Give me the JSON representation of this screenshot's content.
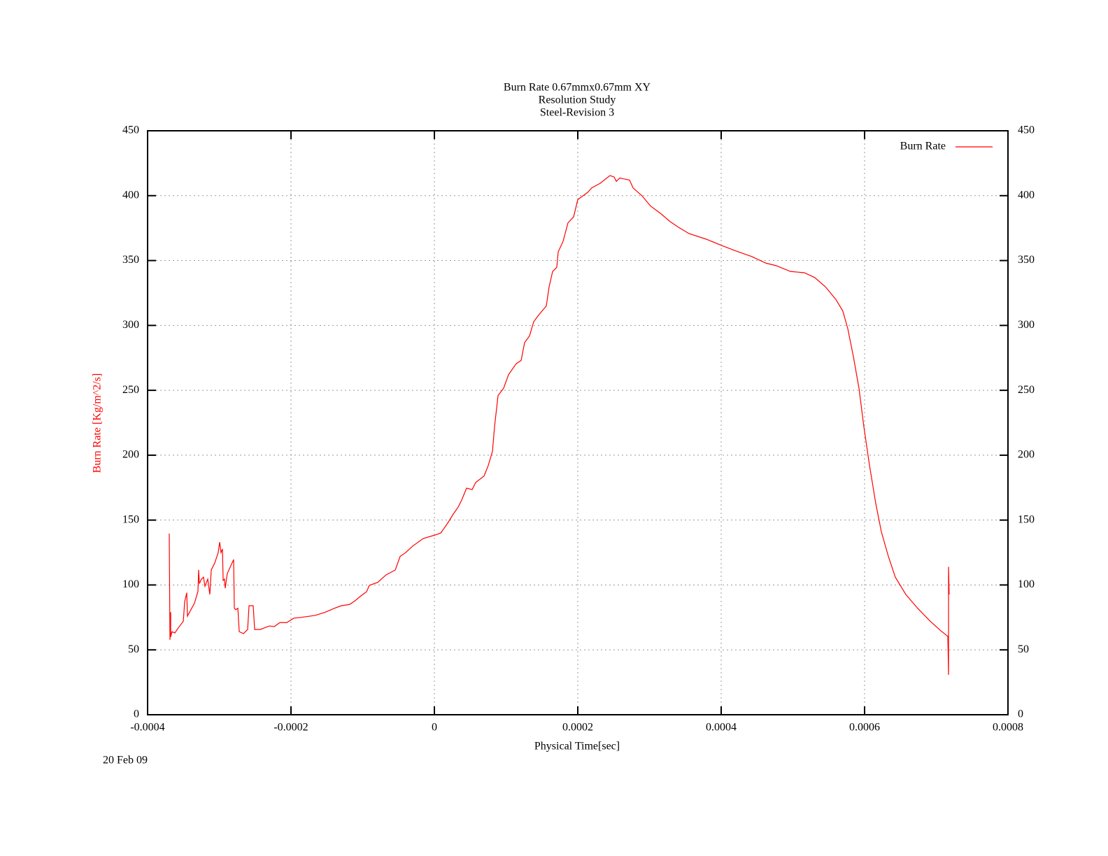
{
  "chart_data": {
    "type": "line",
    "title": [
      "Burn Rate 0.67mmx0.67mm XY",
      "Resolution Study",
      "Steel-Revision 3"
    ],
    "xlabel": "Physical Time[sec]",
    "ylabel": "Burn Rate  [Kg/m^2/s]",
    "date": "20 Feb 09",
    "xlim": [
      -0.0004,
      0.0008
    ],
    "xticks": [
      -0.0004,
      -0.0002,
      0,
      0.0002,
      0.0004,
      0.0006,
      0.0008
    ],
    "ylim": [
      0,
      450
    ],
    "yticks": [
      0,
      50,
      100,
      150,
      200,
      250,
      300,
      350,
      400,
      450
    ],
    "grid": true,
    "legend": "upper right",
    "x": [
      -0.0003698,
      -0.0003688,
      -0.0003678,
      -0.0003678,
      -0.0003659,
      -0.000362,
      -0.0003571,
      -0.0003502,
      -0.0003483,
      -0.0003454,
      -0.0003444,
      -0.0003405,
      -0.0003346,
      -0.0003298,
      -0.0003288,
      -0.0003278,
      -0.0003249,
      -0.000322,
      -0.00032,
      -0.0003161,
      -0.0003132,
      -0.0003112,
      -0.0003063,
      -0.0003015,
      -0.0002995,
      -0.0002976,
      -0.0002956,
      -0.0002946,
      -0.0002927,
      -0.0002917,
      -0.0002888,
      -0.00028,
      -0.000279,
      -0.0002771,
      -0.0002741,
      -0.0002722,
      -0.0002663,
      -0.0002605,
      -0.0002585,
      -0.0002527,
      -0.0002507,
      -0.0002429,
      -0.0002302,
      -0.0002234,
      -0.0002156,
      -0.0002059,
      -0.0001961,
      -0.0001863,
      -0.0001668,
      -0.0001522,
      -0.0001395,
      -0.0001298,
      -0.0001181,
      -0.0001103,
      -0.0001024,
      -9.46e-05,
      -9.07e-05,
      -7.9e-05,
      -6.73e-05,
      -5.46e-05,
      -4.78e-05,
      -4e-05,
      -3.02e-05,
      -1.56e-05,
      1e-06,
      8.8e-06,
      1.85e-05,
      2.63e-05,
      3.32e-05,
      3.8e-05,
      4.49e-05,
      5.27e-05,
      5.76e-05,
      6.93e-05,
      7.51e-05,
      8.1e-05,
      8.39e-05,
      8.88e-05,
      9.66e-05,
      0.0001034,
      0.0001141,
      0.000121,
      0.0001258,
      0.0001327,
      0.0001385,
      0.0001454,
      0.0001561,
      0.00016,
      0.0001649,
      0.0001707,
      0.0001727,
      0.0001795,
      0.0001863,
      0.0001942,
      0.0002,
      0.0002137,
      0.0002195,
      0.0002312,
      0.0002449,
      0.0002507,
      0.0002537,
      0.0002585,
      0.0002722,
      0.0002771,
      0.0002897,
      0.0003015,
      0.0003161,
      0.0003288,
      0.0003405,
      0.0003551,
      0.0003795,
      0.000399,
      0.0004185,
      0.0004429,
      0.0004624,
      0.0004771,
      0.0004966,
      0.0005161,
      0.0005307,
      0.0005453,
      0.00056,
      0.0005697,
      0.0005766,
      0.0005844,
      0.0005922,
      0.000599,
      0.0006068,
      0.0006156,
      0.0006234,
      0.0006332,
      0.0006429,
      0.0006575,
      0.0006741,
      0.0006917,
      0.0007063,
      0.0007161,
      0.0007171,
      0.0007171,
      0.000718
    ],
    "series": [
      {
        "name": "Burn Rate",
        "color": "#ff0000",
        "values": [
          139.6,
          57.7,
          79,
          60,
          64,
          63,
          67,
          72,
          87,
          94,
          76,
          80,
          86,
          95,
          111.6,
          101,
          104.5,
          106,
          99,
          104.5,
          92.7,
          111.6,
          117,
          125,
          133,
          125,
          127.7,
          103.5,
          104.5,
          97.5,
          108.9,
          119.6,
          82,
          81,
          82,
          64,
          62.5,
          65.7,
          84,
          84,
          65.7,
          65.7,
          68.4,
          67.9,
          71,
          71,
          74.4,
          75,
          76.5,
          79,
          82,
          84,
          85,
          88,
          91.6,
          94.8,
          99.7,
          102,
          107.8,
          111.5,
          122,
          125,
          130,
          135.8,
          138.5,
          140,
          147.6,
          154.6,
          160,
          165.4,
          174.6,
          173.5,
          179,
          184,
          192,
          203,
          222,
          246,
          251.6,
          262,
          270.5,
          273,
          286.7,
          292,
          302.8,
          308,
          315,
          329.7,
          341.6,
          344.8,
          356.7,
          364.8,
          379,
          383.7,
          397,
          402.5,
          406,
          409.5,
          415.5,
          414.4,
          411,
          413.6,
          412,
          406,
          399.8,
          392,
          386,
          380,
          375.6,
          370.8,
          366.4,
          362,
          357.8,
          353,
          348,
          346,
          341.6,
          340.6,
          336.8,
          329.8,
          320,
          311,
          297.5,
          276,
          251.6,
          222,
          192.4,
          162.8,
          141,
          122,
          106,
          92.7,
          82,
          72,
          64.7,
          60.4,
          30.7,
          114,
          92.7
        ]
      }
    ]
  }
}
